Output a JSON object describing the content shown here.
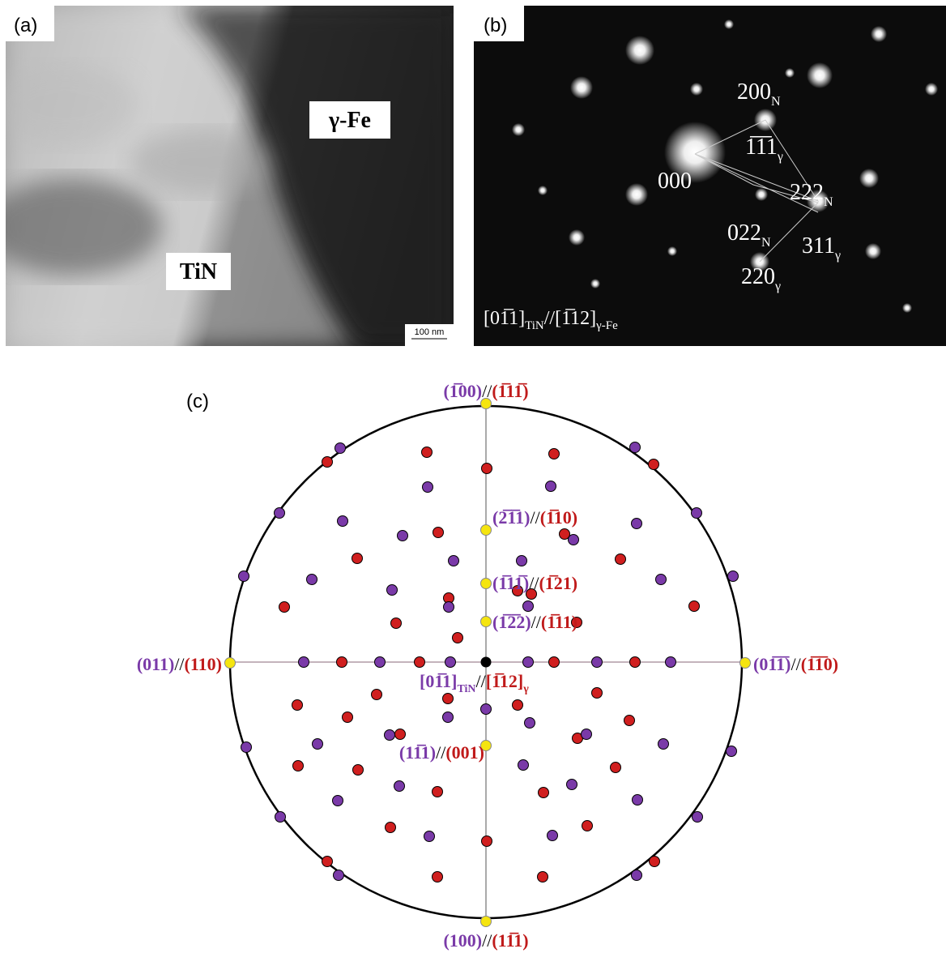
{
  "panel_a": {
    "label": "(a)",
    "phase_fe": "γ-Fe",
    "phase_tin": "TiN",
    "scale_bar": "100 nm"
  },
  "panel_b": {
    "label": "(b)",
    "spots": [
      {
        "hkl": "200",
        "phase": "N"
      },
      {
        "hkl": "1̅1̅1",
        "phase": "γ"
      },
      {
        "hkl": "000"
      },
      {
        "hkl": "222",
        "phase": "N"
      },
      {
        "hkl": "022",
        "phase": "N"
      },
      {
        "hkl": "311",
        "phase": "γ"
      },
      {
        "hkl": "220",
        "phase": "γ"
      }
    ],
    "zone_axis": {
      "tin": "[01̅1]",
      "tin_sub": "TiN",
      "sep": "//",
      "fe": "[1̅12]",
      "fe_sub": "γ-Fe"
    }
  },
  "panel_c": {
    "label": "(c)",
    "sep": "//",
    "poles": [
      {
        "tin": "(1̅00)",
        "fe": "(1̅11̅)"
      },
      {
        "tin": "(2̅1̅1)",
        "fe": "(1̅10)"
      },
      {
        "tin": "(1̅11̅)",
        "fe": "(1̅21)"
      },
      {
        "tin": "(1̅2̅2)",
        "fe": "(1̅11)"
      },
      {
        "tin": "(011)",
        "fe": "(110)"
      },
      {
        "tin": "(01̅1̅)",
        "fe": "(1̅1̅0)"
      },
      {
        "tin": "(11̅1)",
        "fe": "(001)"
      },
      {
        "tin": "(100)",
        "fe": "(11̅1)"
      }
    ],
    "zone_axis": {
      "tin": "[01̅1]",
      "tin_sub": "TiN",
      "fe": "[1̅12]",
      "fe_sub": "γ"
    }
  }
}
